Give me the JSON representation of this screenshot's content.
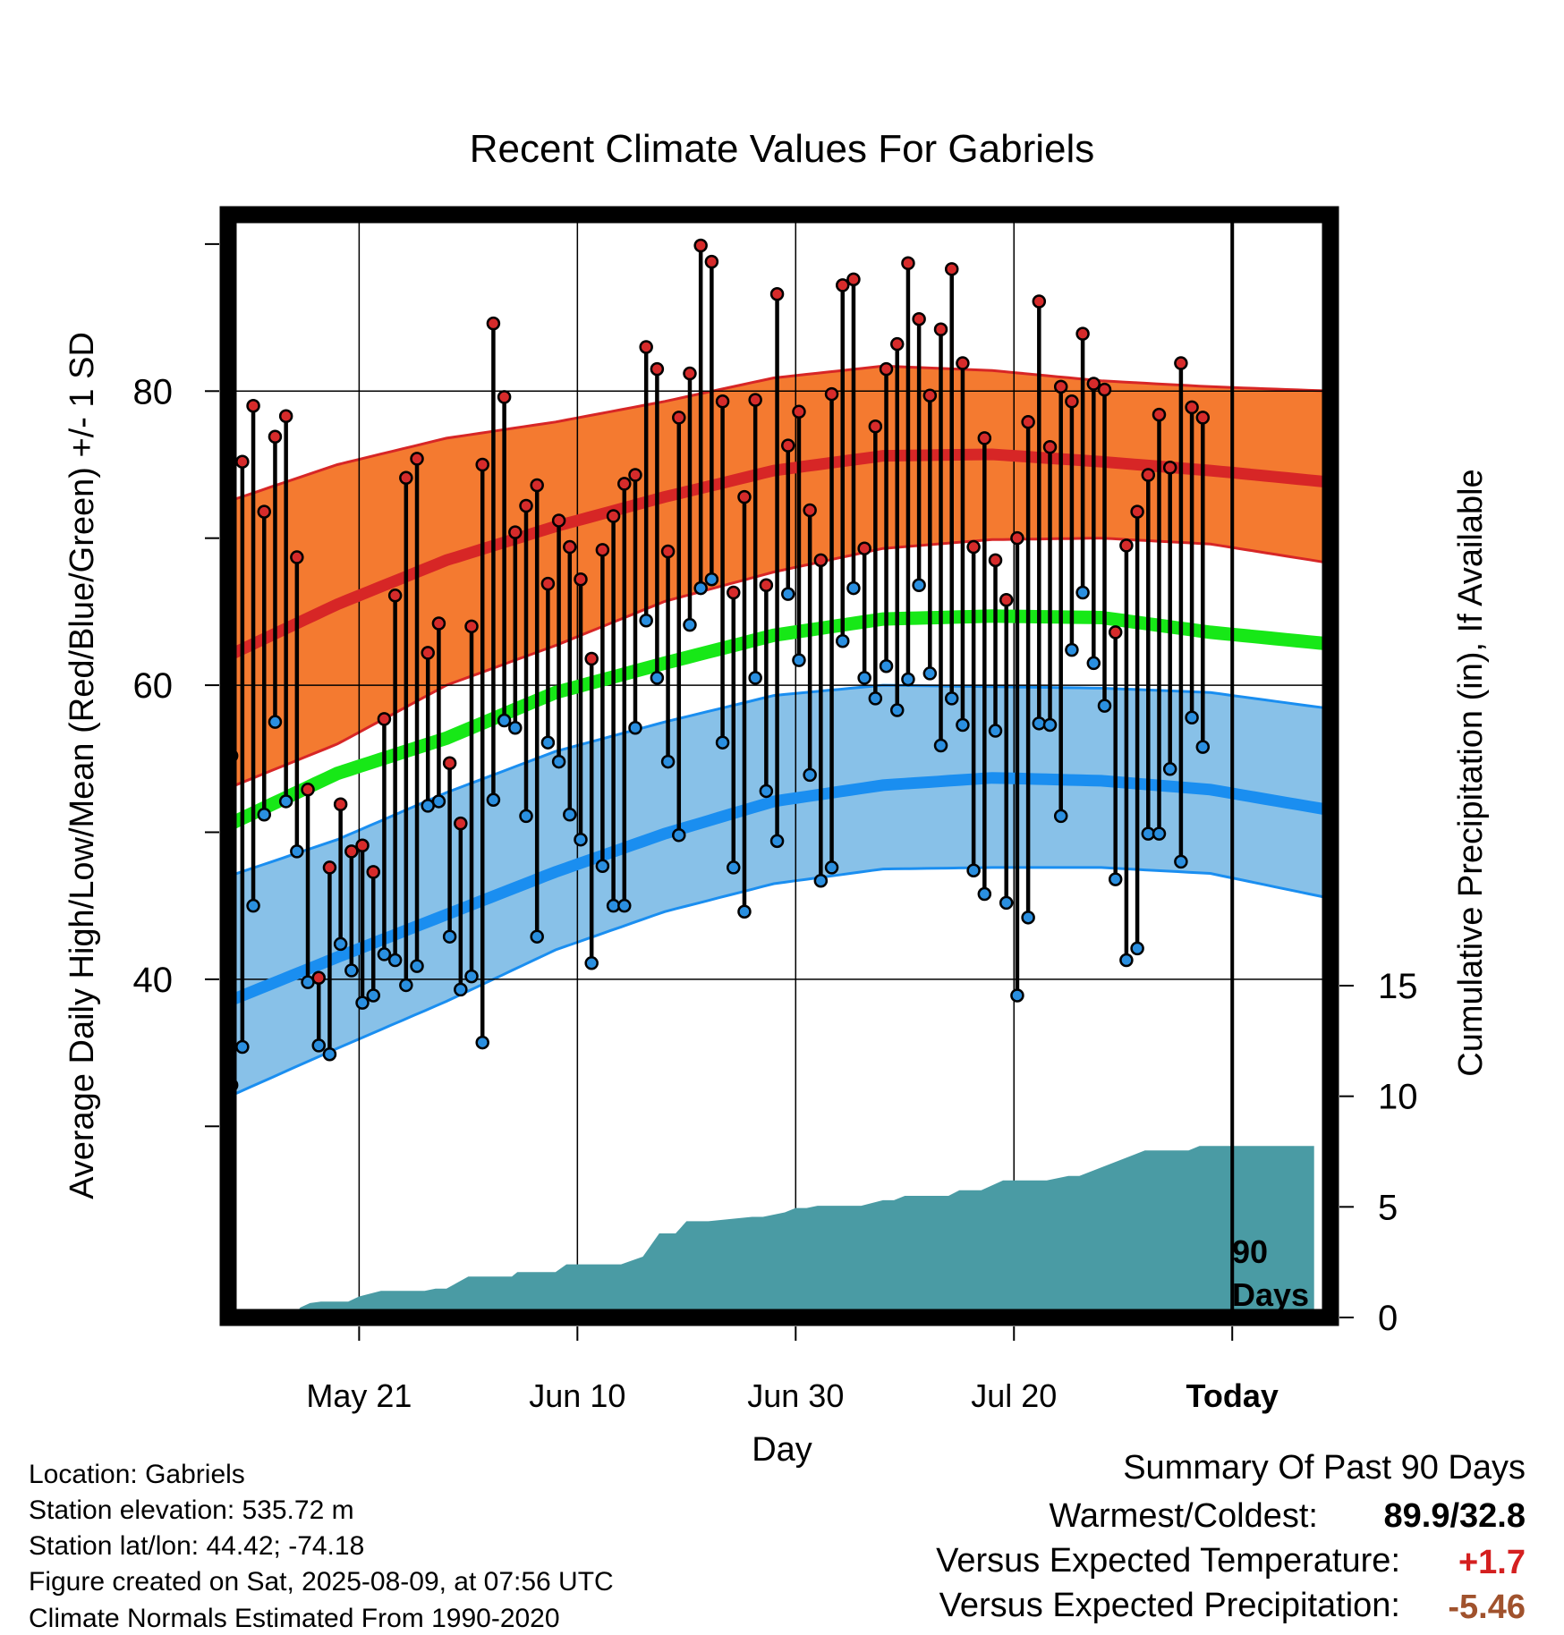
{
  "chart_data": {
    "type": "line",
    "title": "Recent Climate Values For Gabriels",
    "xlabel": "Day",
    "ylabel_left": "Average Daily High/Low/Mean (Red/Blue/Green) +/- 1 SD",
    "ylabel_right": "Cumulative Precipitation (in), If Available",
    "x_axis_ticks": [
      {
        "label": "May 21",
        "day": 12
      },
      {
        "label": "Jun 10",
        "day": 32
      },
      {
        "label": "Jun 30",
        "day": 52
      },
      {
        "label": "Jul 20",
        "day": 72
      },
      {
        "label": "Today",
        "day": 92
      }
    ],
    "xlim_day": [
      0,
      101
    ],
    "temp_ylim": [
      17,
      92
    ],
    "temp_ticks_labeled": [
      40,
      60,
      80
    ],
    "temp_ticks_minor": [
      30,
      50,
      70,
      90
    ],
    "precip_ylim": [
      0,
      15
    ],
    "precip_ticks": [
      0,
      5,
      10,
      15
    ],
    "today_marker": {
      "day": 92,
      "label_line1": "90",
      "label_line2": "Days"
    },
    "grid": true,
    "normals": {
      "days": [
        0,
        10,
        20,
        30,
        40,
        50,
        60,
        70,
        80,
        90,
        101
      ],
      "high_mean": [
        62,
        65.5,
        68.5,
        70.8,
        72.8,
        74.6,
        75.6,
        75.7,
        75.2,
        74.6,
        73.8
      ],
      "high_upper": [
        72.5,
        75,
        76.8,
        77.9,
        79.3,
        80.9,
        81.7,
        81.4,
        80.7,
        80.3,
        80
      ],
      "high_lower": [
        53,
        56,
        60,
        62.7,
        65.7,
        67.7,
        69.3,
        69.9,
        70,
        69.6,
        68.3
      ],
      "mean_mean": [
        50.5,
        54,
        56.4,
        59.5,
        61.5,
        63.4,
        64.5,
        64.7,
        64.6,
        63.6,
        62.8
      ],
      "low_mean": [
        38.5,
        41.5,
        44.4,
        47.3,
        49.9,
        52.1,
        53.2,
        53.7,
        53.5,
        52.9,
        51.5
      ],
      "low_upper": [
        47,
        49.5,
        52.7,
        55.5,
        57.5,
        59.3,
        60,
        59.9,
        59.8,
        59.5,
        58.4
      ],
      "low_lower": [
        32,
        35.3,
        38.5,
        42,
        44.6,
        46.5,
        47.5,
        47.6,
        47.6,
        47.2,
        45.5
      ]
    },
    "colors": {
      "high_band": "#f47a30",
      "high_line": "#d72626",
      "mean_line": "#17e817",
      "low_band": "#88c1e8",
      "low_line": "#1a8ef0",
      "precip_fill": "#4a9ba4",
      "high_point": "#d62b2b",
      "low_point": "#2a8fe0",
      "above_value": "#d42020",
      "below_value": "#a0522d"
    },
    "daily": {
      "start_day": 0,
      "high": [
        55.2,
        75.2,
        79,
        71.8,
        76.9,
        78.3,
        68.7,
        52.9,
        40.1,
        47.6,
        51.9,
        48.7,
        49.1,
        47.3,
        57.7,
        66.1,
        74.1,
        75.4,
        62.2,
        64.2,
        54.7,
        50.6,
        64,
        75,
        84.6,
        79.6,
        70.4,
        72.2,
        73.6,
        66.9,
        71.2,
        69.4,
        67.2,
        61.8,
        69.2,
        71.5,
        73.7,
        74.3,
        83,
        81.5,
        69.1,
        78.2,
        81.2,
        89.9,
        88.8,
        79.3,
        66.3,
        72.8,
        79.4,
        66.8,
        86.6,
        76.3,
        78.6,
        71.9,
        68.5,
        79.8,
        87.2,
        87.6,
        69.3,
        77.6,
        81.5,
        83.2,
        88.7,
        84.9,
        79.7,
        84.2,
        88.3,
        81.9,
        69.4,
        76.8,
        68.5,
        65.8,
        70,
        77.9,
        86.1,
        76.2,
        80.3,
        79.3,
        83.9,
        80.5,
        80.1,
        63.6,
        69.5,
        71.8,
        74.3,
        78.4,
        74.8,
        81.9,
        78.9,
        78.2
      ],
      "low": [
        32.8,
        35.4,
        45,
        51.2,
        57.5,
        52.1,
        48.7,
        39.8,
        35.5,
        34.9,
        42.4,
        40.6,
        38.4,
        38.9,
        41.7,
        41.3,
        39.6,
        40.9,
        51.8,
        52.1,
        42.9,
        39.3,
        40.2,
        35.7,
        52.2,
        57.6,
        57.1,
        51.1,
        42.9,
        56.1,
        54.8,
        51.2,
        49.5,
        41.1,
        47.7,
        45,
        45,
        57.1,
        64.4,
        60.5,
        54.8,
        49.8,
        64.1,
        66.6,
        67.2,
        56.1,
        47.6,
        44.6,
        60.5,
        52.8,
        49.4,
        66.2,
        61.7,
        53.9,
        46.7,
        47.6,
        63,
        66.6,
        60.5,
        59.1,
        61.3,
        58.3,
        60.4,
        66.8,
        60.8,
        55.9,
        59.1,
        57.3,
        47.4,
        45.8,
        56.9,
        45.2,
        38.9,
        44.2,
        57.4,
        57.3,
        51.1,
        62.4,
        66.3,
        61.5,
        58.6,
        46.8,
        41.3,
        42.1,
        49.9,
        49.9,
        54.3,
        48,
        57.8,
        55.8
      ]
    },
    "precipitation": {
      "days": [
        0,
        6,
        6.6,
        7.5,
        8.5,
        11,
        12,
        14,
        18,
        19,
        20,
        22,
        26,
        26.5,
        30,
        31,
        36,
        38,
        39.5,
        41,
        42,
        44,
        48,
        49,
        51,
        52,
        53,
        54,
        58,
        60,
        61,
        62,
        66,
        67,
        69,
        71,
        75,
        77,
        78,
        84,
        88,
        89,
        99.5
      ],
      "values": [
        0,
        0,
        0.45,
        0.65,
        0.72,
        0.72,
        0.95,
        1.2,
        1.2,
        1.3,
        1.3,
        1.85,
        1.85,
        2.05,
        2.05,
        2.4,
        2.4,
        2.75,
        3.8,
        3.8,
        4.35,
        4.35,
        4.55,
        4.55,
        4.75,
        4.95,
        4.95,
        5.05,
        5.05,
        5.3,
        5.3,
        5.5,
        5.5,
        5.75,
        5.75,
        6.2,
        6.2,
        6.4,
        6.4,
        7.55,
        7.55,
        7.75,
        7.75
      ]
    }
  },
  "footer": {
    "location": "Location: Gabriels",
    "elevation": "Station elevation: 535.72 m",
    "latlon": "Station lat/lon: 44.42; -74.18",
    "created": "Figure created on Sat, 2025-08-09, at 07:56 UTC",
    "normals_note": "Climate Normals Estimated From 1990-2020"
  },
  "summary": {
    "heading": "Summary Of Past 90 Days",
    "warm_cold_label": "Warmest/Coldest:",
    "warm_cold_value": "89.9/32.8",
    "temp_label": "Versus Expected Temperature:",
    "temp_value": "+1.7",
    "precip_label": "Versus Expected Precipitation:",
    "precip_value": "-5.46"
  }
}
